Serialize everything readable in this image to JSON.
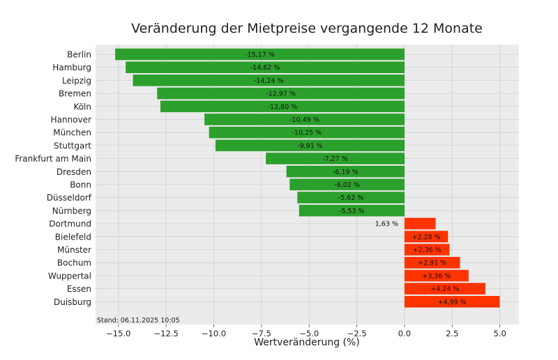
{
  "chart_data": {
    "type": "bar",
    "orientation": "horizontal",
    "title": "Veränderung der Mietpreise vergangende 12 Monate",
    "xlabel": "Wertveränderung (%)",
    "ylabel": "",
    "xlim": [
      -16.2,
      6.0
    ],
    "xticks": [
      -15.0,
      -12.5,
      -10.0,
      -7.5,
      -5.0,
      -2.5,
      0.0,
      2.5,
      5.0
    ],
    "xtick_labels": [
      "−15.0",
      "−12.5",
      "−10.0",
      "−7.5",
      "−5.0",
      "−2.5",
      "0.0",
      "2.5",
      "5.0"
    ],
    "grid": true,
    "colors": {
      "negative": "#2ca02c",
      "positive": "#ff3300",
      "background": "#ebebeb",
      "grid": "#cfcfcf"
    },
    "categories": [
      "Berlin",
      "Hamburg",
      "Leipzig",
      "Bremen",
      "Köln",
      "Hannover",
      "München",
      "Stuttgart",
      "Frankfurt am Main",
      "Dresden",
      "Bonn",
      "Düsseldorf",
      "Nürnberg",
      "Dortmund",
      "Bielefeld",
      "Münster",
      "Bochum",
      "Wuppertal",
      "Essen",
      "Duisburg"
    ],
    "values": [
      -15.17,
      -14.62,
      -14.24,
      -12.97,
      -12.8,
      -10.49,
      -10.25,
      -9.91,
      -7.27,
      -6.19,
      -6.02,
      -5.62,
      -5.53,
      1.63,
      2.28,
      2.36,
      2.91,
      3.36,
      4.24,
      4.99
    ],
    "data_labels": [
      "-15,17 %",
      "-14,62 %",
      "-14,24 %",
      "-12,97 %",
      "-12,80 %",
      "-10,49 %",
      "-10,25 %",
      "-9,91 %",
      "-7,27 %",
      "-6,19 %",
      "-6,02 %",
      "-5,62 %",
      "-5,53 %",
      "1,63 %",
      "+2,28 %",
      "+2,36 %",
      "+2,91 %",
      "+3,36 %",
      "+4,24 %",
      "+4,99 %"
    ],
    "footnote": "Stand: 06.11.2025 10:05"
  }
}
